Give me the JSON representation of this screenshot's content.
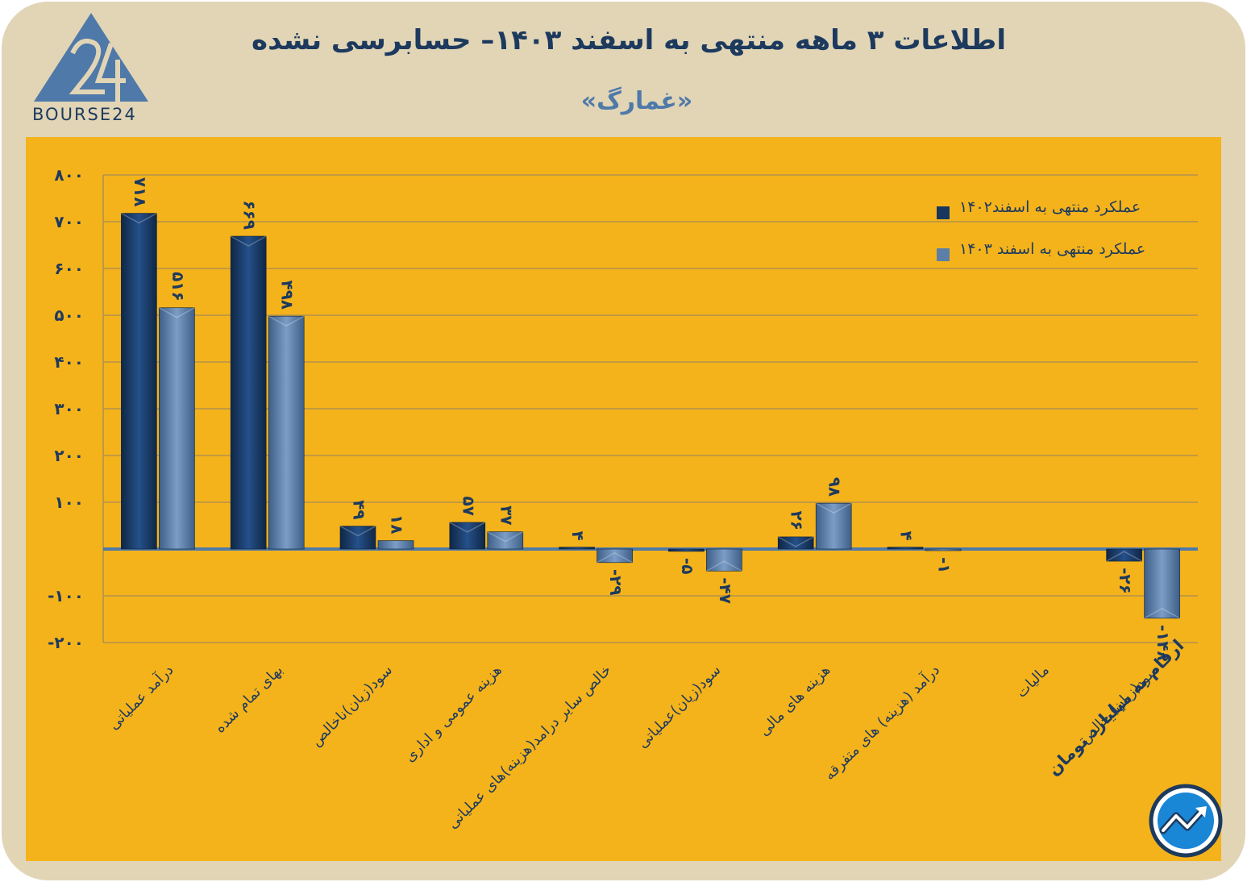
{
  "header": {
    "title": "اطلاعات ۳ ماهه منتهی به اسفند ۱۴۰۳– حسابرسی نشده",
    "subtitle": "«غمارگ»",
    "logo_text": "BOURSE24"
  },
  "footer": {
    "unit_note": "ارقام به میلیارد تومان"
  },
  "colors": {
    "frame": "#e1d5b6",
    "panel": "#f5b31b",
    "series_1402": "#17375e",
    "series_1403": "#5b7fa8",
    "text": "#1d3a5e"
  },
  "chart_data": {
    "type": "bar",
    "title": "اطلاعات ۳ ماهه منتهی به اسفند ۱۴۰۳– حسابرسی نشده",
    "categories": [
      "درآمد عملیاتی",
      "بهای تمام شده",
      "سود(زیان)ناخالص",
      "هزینه عمومی و اداری",
      "خالص سایر درامد(هزینه)های عملیاتی",
      "سود(زیان)عملیاتی",
      "هزینه های مالی",
      "درآمد (هزینه) های متفرقه",
      "مالیات",
      "سود(زیان) خالص"
    ],
    "series": [
      {
        "name": "عملکرد منتهی به اسفند۱۴۰۲",
        "values": [
          718,
          669,
          49,
          57,
          4,
          -5,
          26,
          4,
          null,
          -26
        ],
        "labels": [
          "۷۱۸",
          "۶۶۹",
          "۴۹",
          "۵۷",
          "۴",
          "-۵",
          "۲۶",
          "۴",
          "",
          "-۲۶"
        ]
      },
      {
        "name": "عملکرد منتهی به اسفند ۱۴۰۳",
        "values": [
          516,
          498,
          18,
          37,
          -29,
          -47,
          98,
          -1,
          null,
          -148
        ],
        "labels": [
          "۵۱۶",
          "۴۹۸",
          "۱۸",
          "۳۷",
          "-۲۹",
          "-۴۷",
          "۹۸",
          "-۱",
          "",
          "-۱۴۸"
        ]
      }
    ],
    "y_ticks": [
      800,
      700,
      600,
      500,
      400,
      300,
      200,
      100,
      -100,
      -200
    ],
    "y_tick_labels": [
      "۸۰۰",
      "۷۰۰",
      "۶۰۰",
      "۵۰۰",
      "۴۰۰",
      "۳۰۰",
      "۲۰۰",
      "۱۰۰",
      "-۱۰۰",
      "-۲۰۰"
    ],
    "ylim": [
      -200,
      800
    ],
    "grid": true,
    "legend_position": "top-right"
  }
}
